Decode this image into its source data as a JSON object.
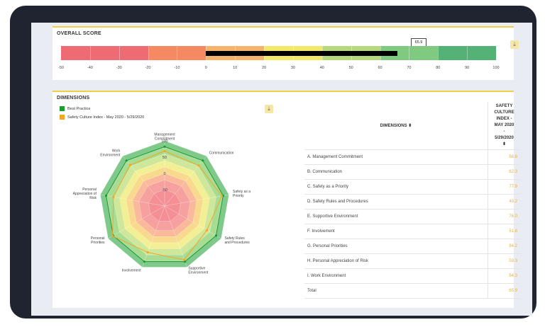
{
  "overall": {
    "title": "OVERALL SCORE",
    "score": "65.9",
    "score_value": 65.9,
    "download_icon": "download-icon",
    "scale_min": -50,
    "scale_max": 100,
    "ticks": [
      "-50",
      "-40",
      "-30",
      "-20",
      "-10",
      "0",
      "10",
      "20",
      "30",
      "40",
      "50",
      "60",
      "70",
      "80",
      "90",
      "100"
    ],
    "bands": [
      {
        "from": -50,
        "to": -20,
        "color": "#ef6b73"
      },
      {
        "from": -20,
        "to": 0,
        "color": "#f58a62"
      },
      {
        "from": 0,
        "to": 20,
        "color": "#f6b36b"
      },
      {
        "from": 20,
        "to": 40,
        "color": "#f4e86a"
      },
      {
        "from": 40,
        "to": 60,
        "color": "#b6d77b"
      },
      {
        "from": 60,
        "to": 80,
        "color": "#7fca80"
      },
      {
        "from": 80,
        "to": 100,
        "color": "#55b276"
      }
    ]
  },
  "dimensions": {
    "title": "DIMENSIONS",
    "download_icon": "download-icon",
    "legend": [
      {
        "label": "Best Practice",
        "color": "#1a9b2e"
      },
      {
        "label": "Safety Culture Index - May 2020 - 5/29/2020",
        "color": "#f5a623"
      }
    ],
    "table": {
      "col_dimension": "DIMENSIONS ⬍",
      "col_value_lines": [
        "SAFETY",
        "CULTURE",
        "INDEX -",
        "MAY 2020",
        "-",
        "5/29/2020",
        "⬍"
      ],
      "rows": [
        {
          "name": "A. Management Commitment",
          "value": "68.8"
        },
        {
          "name": "B. Communication",
          "value": "62.3"
        },
        {
          "name": "C. Safety as a Priority",
          "value": "77.9"
        },
        {
          "name": "D. Safety Rules and Procedures",
          "value": "49.2"
        },
        {
          "name": "E. Supportive Environment",
          "value": "76.0"
        },
        {
          "name": "F. Involvement",
          "value": "51.6"
        },
        {
          "name": "G. Personal Priorities",
          "value": "84.2"
        },
        {
          "name": "H. Personal Appreciation of Risk",
          "value": "59.3"
        },
        {
          "name": "I. Work Environment",
          "value": "64.3"
        }
      ],
      "total_label": "Total",
      "total_value": "65.9"
    }
  },
  "chart_data": {
    "type": "radar",
    "axes": [
      [
        "Management",
        "Commitment"
      ],
      [
        "Communication"
      ],
      [
        "Safety as a",
        "Priority"
      ],
      [
        "Safety Rules",
        "and Procedures"
      ],
      [
        "Supportive",
        "Environment"
      ],
      [
        "Involvement"
      ],
      [
        "Personal",
        "Priorities"
      ],
      [
        "Personal",
        "Appreciation of",
        "Risk"
      ],
      [
        "Work",
        "Environment"
      ]
    ],
    "range": [
      -100,
      100
    ],
    "tick_labels": [
      "100",
      "50",
      "0",
      "-50"
    ],
    "tick_values": [
      100,
      50,
      0,
      -50
    ],
    "bands": [
      {
        "to": 100,
        "color": "#7fca8a"
      },
      {
        "to": 80,
        "color": "#a9dc93"
      },
      {
        "to": 60,
        "color": "#cfe79a"
      },
      {
        "to": 40,
        "color": "#f3ef95"
      },
      {
        "to": 20,
        "color": "#f8d98e"
      },
      {
        "to": 0,
        "color": "#f9b99a"
      },
      {
        "to": -20,
        "color": "#f6a0a0"
      },
      {
        "to": -50,
        "color": "#f38f95"
      }
    ],
    "series": [
      {
        "name": "Best Practice",
        "color": "#1a9b2e",
        "values": [
          82,
          82,
          82,
          82,
          82,
          82,
          82,
          82,
          82
        ]
      },
      {
        "name": "Safety Culture Index - May 2020 - 5/29/2020",
        "color": "#f5a623",
        "values": [
          68.8,
          62.3,
          77.9,
          49.2,
          76.0,
          51.6,
          84.2,
          59.3,
          64.3
        ]
      }
    ]
  }
}
